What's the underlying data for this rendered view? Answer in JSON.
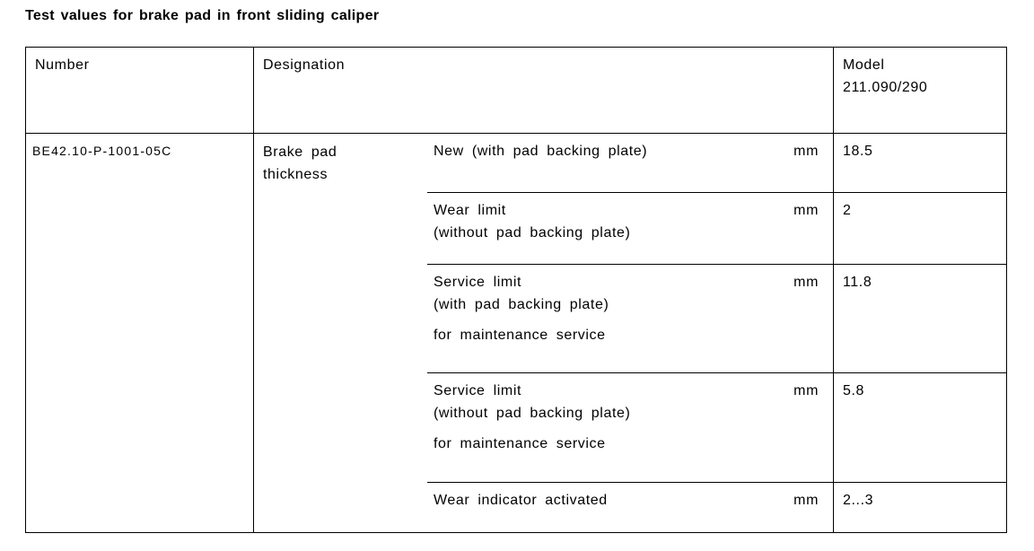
{
  "title": "Test values for brake pad in front sliding caliper",
  "table": {
    "headers": {
      "number": "Number",
      "designation": "Designation",
      "model_line1": "Model",
      "model_line2": "211.090/290"
    },
    "row": {
      "number": "BE42.10-P-1001-05C",
      "designation_label": "Brake pad\nthickness",
      "subrows": [
        {
          "desc": "New (with pad backing plate)",
          "unit": "mm",
          "value": "18.5"
        },
        {
          "desc": "Wear limit\n(without pad backing plate)",
          "unit": "mm",
          "value": "2"
        },
        {
          "desc": "Service limit\n(with pad backing plate)",
          "note": "for maintenance service",
          "unit": "mm",
          "value": "11.8"
        },
        {
          "desc": "Service limit\n(without pad backing plate)",
          "note": "for maintenance service",
          "unit": "mm",
          "value": "5.8"
        },
        {
          "desc": "Wear indicator activated",
          "unit": "mm",
          "value": "2...3"
        }
      ]
    }
  }
}
